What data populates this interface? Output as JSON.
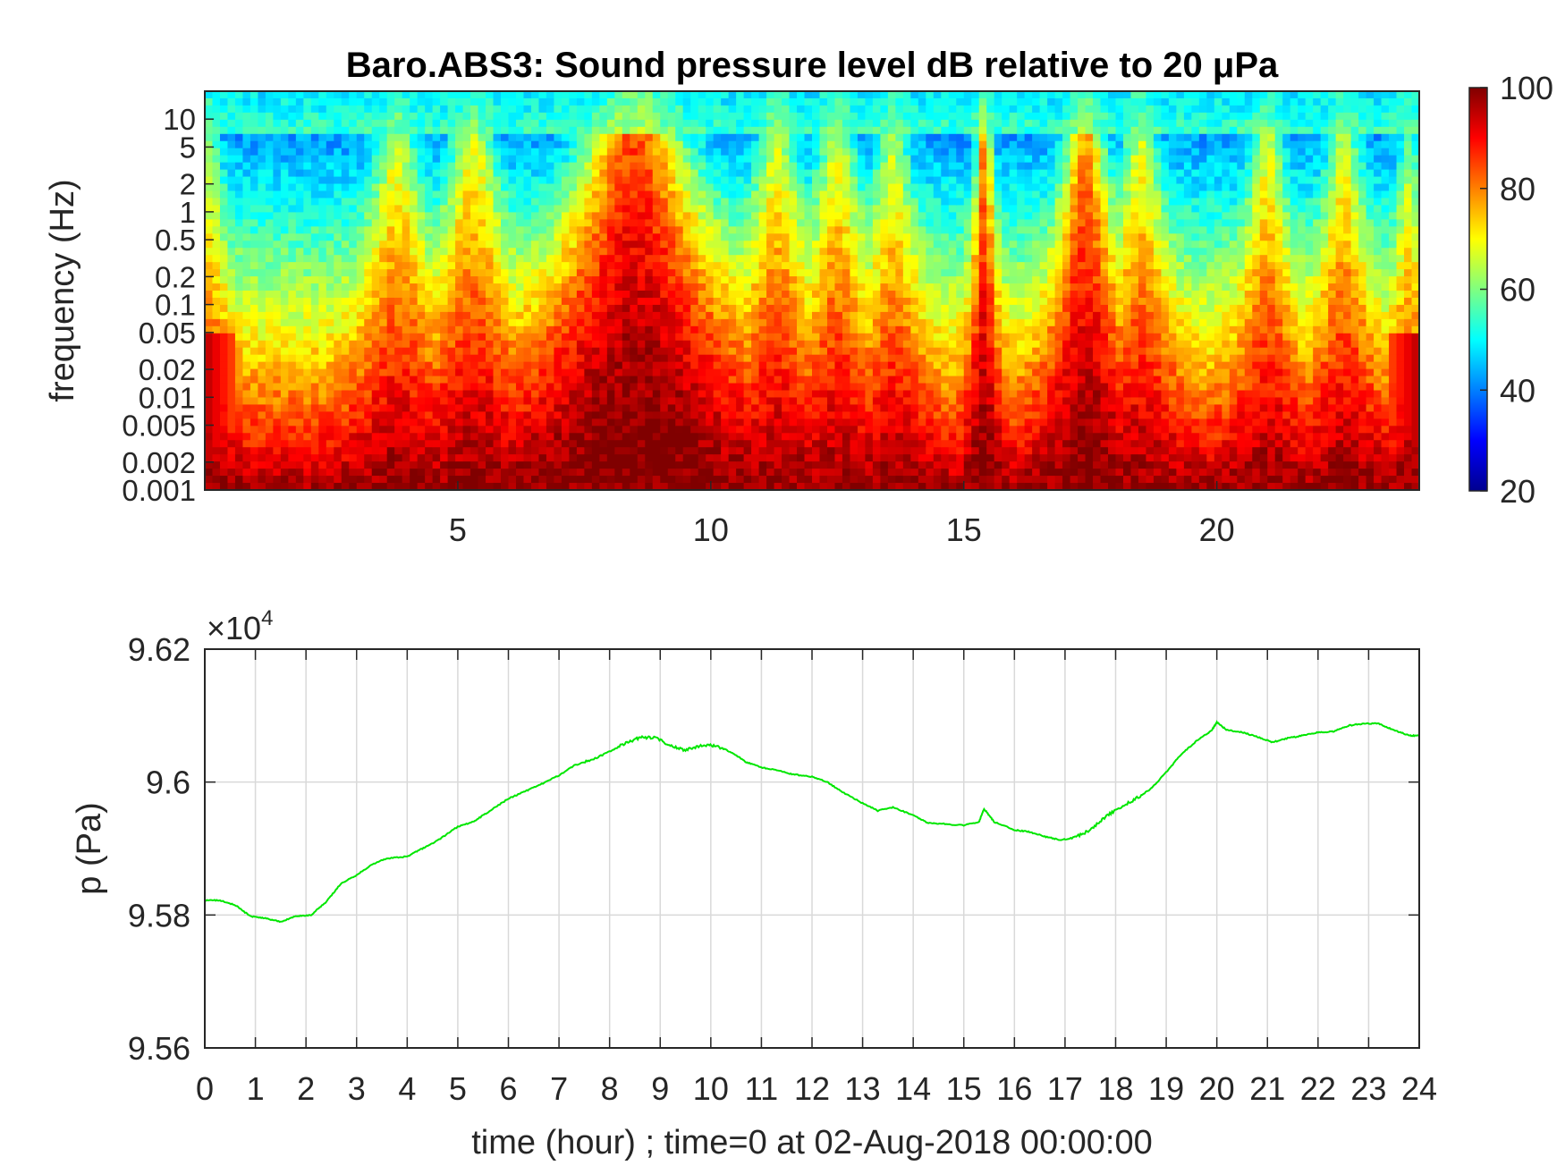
{
  "chart_data": [
    {
      "type": "heatmap",
      "title": "Baro.ABS3: Sound pressure level dB relative to 20 μPa",
      "ylabel": "frequency (Hz)",
      "xlabel": "",
      "xlim": [
        0,
        24
      ],
      "x_ticks": [
        "5",
        "10",
        "15",
        "20"
      ],
      "x_tick_values": [
        5,
        10,
        15,
        20
      ],
      "yscale": "log",
      "ylim": [
        0.001,
        20
      ],
      "y_ticks": [
        "0.001",
        "0.002",
        "0.005",
        "0.01",
        "0.02",
        "0.05",
        "0.1",
        "0.2",
        "0.5",
        "1",
        "2",
        "5",
        "10"
      ],
      "y_tick_values": [
        0.001,
        0.002,
        0.005,
        0.01,
        0.02,
        0.05,
        0.1,
        0.2,
        0.5,
        1,
        2,
        5,
        10
      ],
      "colormap": "jet",
      "clim": [
        20,
        100
      ],
      "colorbar_ticks": [
        "20",
        "40",
        "60",
        "80",
        "100"
      ],
      "colorbar_tick_values": [
        20,
        40,
        60,
        80,
        100
      ],
      "hot_bursts": [
        {
          "t": 0.1,
          "strength": 0.4,
          "width": 0.5
        },
        {
          "t": 3.8,
          "strength": 0.55,
          "width": 0.9
        },
        {
          "t": 5.3,
          "strength": 0.6,
          "width": 1.0
        },
        {
          "t": 8.5,
          "strength": 1.0,
          "width": 2.3
        },
        {
          "t": 11.3,
          "strength": 0.55,
          "width": 0.9
        },
        {
          "t": 12.5,
          "strength": 0.55,
          "width": 0.8
        },
        {
          "t": 13.6,
          "strength": 0.5,
          "width": 0.7
        },
        {
          "t": 15.4,
          "strength": 0.85,
          "width": 0.35
        },
        {
          "t": 17.4,
          "strength": 0.85,
          "width": 0.9
        },
        {
          "t": 18.5,
          "strength": 0.55,
          "width": 0.8
        },
        {
          "t": 21.0,
          "strength": 0.55,
          "width": 0.7
        },
        {
          "t": 22.5,
          "strength": 0.55,
          "width": 0.7
        },
        {
          "t": 23.8,
          "strength": 0.4,
          "width": 0.4
        }
      ]
    },
    {
      "type": "line",
      "title": "",
      "xlabel": "time (hour) ; time=0 at 02-Aug-2018 00:00:00",
      "ylabel": "p (Pa)",
      "xlim": [
        0,
        24
      ],
      "ylim": [
        95600,
        96200
      ],
      "x_ticks": [
        "0",
        "1",
        "2",
        "3",
        "4",
        "5",
        "6",
        "7",
        "8",
        "9",
        "10",
        "11",
        "12",
        "13",
        "14",
        "15",
        "16",
        "17",
        "18",
        "19",
        "20",
        "21",
        "22",
        "23",
        "24"
      ],
      "x_tick_values": [
        0,
        1,
        2,
        3,
        4,
        5,
        6,
        7,
        8,
        9,
        10,
        11,
        12,
        13,
        14,
        15,
        16,
        17,
        18,
        19,
        20,
        21,
        22,
        23,
        24
      ],
      "y_ticks": [
        "9.56",
        "9.58",
        "9.6",
        "9.62"
      ],
      "y_tick_values": [
        95600,
        95800,
        96000,
        96200
      ],
      "y_exponent_label": "×10",
      "y_exponent_power": "4",
      "grid": true,
      "color": "#00e600",
      "series": [
        {
          "x": [
            0,
            0.3,
            0.6,
            0.9,
            1.2,
            1.5,
            1.8,
            2.1,
            2.4,
            2.7,
            3.0,
            3.3,
            3.6,
            4.0,
            4.3,
            4.6,
            5.0,
            5.3,
            5.6,
            6.0,
            6.3,
            6.6,
            7.0,
            7.3,
            7.6,
            8.0,
            8.3,
            8.6,
            8.9,
            9.2,
            9.5,
            9.8,
            10.1,
            10.4,
            10.7,
            11.0,
            11.3,
            11.6,
            12.0,
            12.3,
            12.6,
            13.0,
            13.3,
            13.6,
            14.0,
            14.3,
            14.6,
            15.0,
            15.3,
            15.4,
            15.6,
            16.0,
            16.3,
            16.6,
            16.9,
            17.2,
            17.5,
            17.8,
            18.1,
            18.4,
            18.7,
            19.0,
            19.3,
            19.6,
            19.9,
            20.0,
            20.2,
            20.5,
            20.8,
            21.1,
            21.4,
            21.7,
            22.0,
            22.3,
            22.6,
            22.9,
            23.2,
            23.5,
            23.8,
            24.0
          ],
          "y": [
            95822,
            95822,
            95815,
            95798,
            95795,
            95790,
            95798,
            95800,
            95820,
            95848,
            95860,
            95876,
            95885,
            95888,
            95900,
            95912,
            95933,
            95940,
            95955,
            95975,
            95985,
            95995,
            96010,
            96025,
            96032,
            96046,
            96058,
            96067,
            96067,
            96055,
            96048,
            96055,
            96055,
            96045,
            96030,
            96022,
            96018,
            96012,
            96008,
            96000,
            95985,
            95968,
            95957,
            95962,
            95950,
            95938,
            95937,
            95935,
            95940,
            95960,
            95940,
            95928,
            95925,
            95918,
            95913,
            95917,
            95928,
            95948,
            95962,
            95975,
            95990,
            96015,
            96042,
            96062,
            96078,
            96090,
            96078,
            96075,
            96068,
            96060,
            96066,
            96070,
            96075,
            96076,
            96085,
            96088,
            96088,
            96078,
            96070,
            96070
          ]
        }
      ]
    }
  ]
}
